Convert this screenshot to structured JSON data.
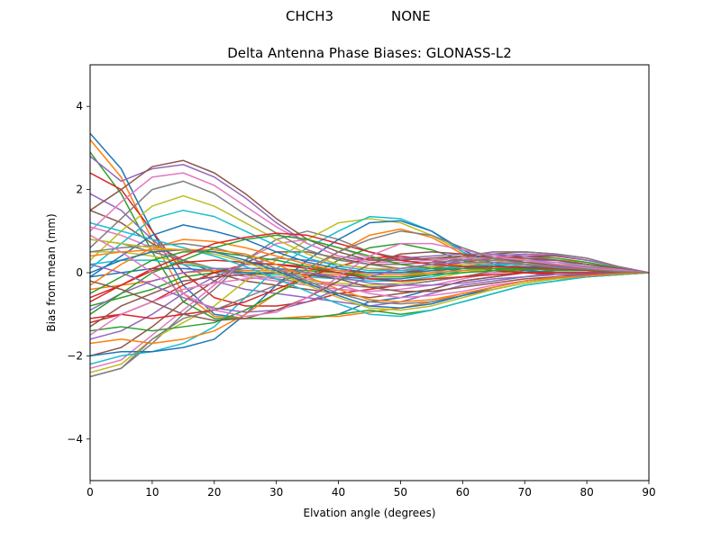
{
  "figure": {
    "suptitle_station": "CHCH3",
    "suptitle_radome": "NONE"
  },
  "chart_data": {
    "type": "line",
    "title": "Delta Antenna Phase Biases: GLONASS-L2",
    "xlabel": "Elvation angle (degrees)",
    "ylabel": "Bias from mean (mm)",
    "xlim": [
      0,
      90
    ],
    "ylim": [
      -5,
      5
    ],
    "xticks": [
      0,
      10,
      20,
      30,
      40,
      50,
      60,
      70,
      80,
      90
    ],
    "yticks": [
      -4,
      -2,
      0,
      2,
      4
    ],
    "ytick_labels": [
      "−4",
      "−2",
      "0",
      "2",
      "4"
    ],
    "grid": false,
    "legend": "none",
    "colors": [
      "#1f77b4",
      "#ff7f0e",
      "#2ca02c",
      "#d62728",
      "#9467bd",
      "#8c564b",
      "#e377c2",
      "#7f7f7f",
      "#bcbd22",
      "#17becf"
    ],
    "x": [
      0,
      5,
      10,
      15,
      20,
      25,
      30,
      35,
      40,
      45,
      50,
      55,
      60,
      65,
      70,
      75,
      80,
      85,
      90
    ],
    "series": [
      {
        "values": [
          3.35,
          2.5,
          1.0,
          -0.3,
          -1.0,
          -1.1,
          -1.1,
          -1.1,
          -1.0,
          -0.7,
          -0.6,
          -0.4,
          -0.2,
          -0.1,
          0.0,
          0.05,
          0.05,
          0.03,
          0.0
        ]
      },
      {
        "values": [
          3.2,
          2.3,
          0.8,
          -0.5,
          -1.05,
          -1.1,
          -1.1,
          -1.05,
          -1.05,
          -0.95,
          -0.85,
          -0.7,
          -0.5,
          -0.35,
          -0.2,
          -0.1,
          -0.05,
          -0.02,
          0.0
        ]
      },
      {
        "values": [
          2.9,
          1.9,
          0.5,
          -0.7,
          -1.1,
          -1.1,
          -1.1,
          -1.1,
          -1.0,
          -0.9,
          -1.0,
          -0.9,
          -0.7,
          -0.5,
          -0.3,
          -0.2,
          -0.1,
          -0.05,
          0.0
        ]
      },
      {
        "values": [
          2.4,
          2.0,
          1.0,
          0.0,
          -0.6,
          -0.8,
          -0.8,
          -0.7,
          -0.5,
          -0.4,
          -0.3,
          -0.2,
          -0.1,
          0.0,
          0.05,
          0.1,
          0.1,
          0.05,
          0.0
        ]
      },
      {
        "values": [
          1.9,
          1.5,
          0.8,
          0.2,
          -0.2,
          -0.4,
          -0.5,
          -0.6,
          -0.7,
          -0.8,
          -0.7,
          -0.5,
          -0.3,
          -0.2,
          -0.1,
          0.0,
          0.0,
          0.0,
          0.0
        ]
      },
      {
        "values": [
          1.5,
          1.2,
          0.7,
          0.3,
          0.0,
          -0.2,
          -0.3,
          -0.4,
          -0.5,
          -0.6,
          -0.5,
          -0.4,
          -0.2,
          -0.1,
          0.0,
          0.05,
          0.05,
          0.02,
          0.0
        ]
      },
      {
        "values": [
          1.1,
          0.9,
          0.6,
          0.3,
          0.1,
          -0.1,
          -0.2,
          -0.3,
          -0.4,
          -0.45,
          -0.4,
          -0.3,
          -0.15,
          0.0,
          0.1,
          0.1,
          0.08,
          0.03,
          0.0
        ]
      },
      {
        "values": [
          0.8,
          0.7,
          0.5,
          0.3,
          0.1,
          -0.05,
          -0.15,
          -0.25,
          -0.3,
          -0.35,
          -0.3,
          -0.2,
          -0.1,
          0.05,
          0.15,
          0.15,
          0.1,
          0.05,
          0.0
        ]
      },
      {
        "values": [
          0.5,
          0.5,
          0.4,
          0.25,
          0.1,
          0.0,
          -0.1,
          -0.2,
          -0.25,
          -0.3,
          -0.25,
          -0.15,
          0.0,
          0.1,
          0.2,
          0.2,
          0.15,
          0.05,
          0.0
        ]
      },
      {
        "values": [
          0.2,
          0.3,
          0.3,
          0.2,
          0.1,
          0.0,
          -0.05,
          -0.1,
          -0.15,
          -0.2,
          -0.2,
          -0.1,
          0.05,
          0.15,
          0.25,
          0.25,
          0.2,
          0.08,
          0.0
        ]
      },
      {
        "values": [
          -0.1,
          0.0,
          0.1,
          0.1,
          0.05,
          0.0,
          0.0,
          -0.05,
          -0.1,
          -0.15,
          -0.15,
          -0.05,
          0.1,
          0.2,
          0.3,
          0.3,
          0.2,
          0.1,
          0.0
        ]
      },
      {
        "values": [
          -0.4,
          -0.3,
          -0.2,
          0.0,
          0.05,
          0.05,
          0.05,
          0.0,
          -0.05,
          -0.1,
          -0.1,
          0.0,
          0.15,
          0.25,
          0.35,
          0.3,
          0.25,
          0.1,
          0.0
        ]
      },
      {
        "values": [
          -0.8,
          -0.6,
          -0.4,
          -0.1,
          0.0,
          0.1,
          0.1,
          0.05,
          0.0,
          -0.05,
          -0.05,
          0.05,
          0.2,
          0.3,
          0.4,
          0.35,
          0.25,
          0.12,
          0.0
        ]
      },
      {
        "values": [
          -1.2,
          -1.0,
          -0.7,
          -0.3,
          0.0,
          0.2,
          0.2,
          0.15,
          0.05,
          0.0,
          0.0,
          0.1,
          0.25,
          0.35,
          0.4,
          0.4,
          0.3,
          0.15,
          0.0
        ]
      },
      {
        "values": [
          -1.6,
          -1.4,
          -1.0,
          -0.5,
          -0.1,
          0.2,
          0.35,
          0.3,
          0.2,
          0.1,
          0.05,
          0.15,
          0.3,
          0.4,
          0.45,
          0.42,
          0.3,
          0.15,
          0.0
        ]
      },
      {
        "values": [
          -2.0,
          -1.8,
          -1.3,
          -0.7,
          -0.2,
          0.25,
          0.5,
          0.5,
          0.35,
          0.2,
          0.1,
          0.2,
          0.35,
          0.45,
          0.5,
          0.45,
          0.35,
          0.15,
          0.0
        ]
      },
      {
        "values": [
          -2.3,
          -2.1,
          -1.5,
          -0.9,
          -0.3,
          0.3,
          0.7,
          0.8,
          0.6,
          0.35,
          0.2,
          0.25,
          0.4,
          0.5,
          0.5,
          0.45,
          0.35,
          0.15,
          0.0
        ]
      },
      {
        "values": [
          -2.5,
          -2.3,
          -1.7,
          -1.0,
          -0.4,
          0.3,
          0.8,
          1.0,
          0.8,
          0.5,
          0.35,
          0.3,
          0.4,
          0.5,
          0.5,
          0.45,
          0.35,
          0.15,
          0.0
        ]
      },
      {
        "values": [
          -2.4,
          -2.2,
          -1.6,
          -1.2,
          -0.8,
          -0.2,
          0.3,
          0.8,
          1.2,
          1.3,
          1.2,
          0.9,
          0.5,
          0.2,
          0.05,
          0.0,
          0.0,
          0.0,
          0.0
        ]
      },
      {
        "values": [
          -2.2,
          -2.0,
          -1.9,
          -1.7,
          -1.3,
          -0.6,
          0.1,
          0.6,
          1.0,
          1.35,
          1.3,
          1.0,
          0.5,
          0.15,
          0.0,
          -0.05,
          -0.05,
          -0.02,
          0.0
        ]
      },
      {
        "values": [
          -2.0,
          -1.9,
          -1.9,
          -1.8,
          -1.6,
          -1.0,
          -0.3,
          0.3,
          0.8,
          1.2,
          1.25,
          1.0,
          0.55,
          0.2,
          0.05,
          0.0,
          0.0,
          0.0,
          0.0
        ]
      },
      {
        "values": [
          -1.7,
          -1.6,
          -1.7,
          -1.6,
          -1.4,
          -1.0,
          -0.5,
          0.0,
          0.5,
          0.9,
          1.05,
          0.85,
          0.45,
          0.15,
          0.0,
          -0.05,
          -0.05,
          -0.02,
          0.0
        ]
      },
      {
        "values": [
          -1.4,
          -1.3,
          -1.4,
          -1.3,
          -1.2,
          -0.9,
          -0.5,
          -0.1,
          0.3,
          0.6,
          0.7,
          0.55,
          0.3,
          0.1,
          0.0,
          -0.05,
          -0.05,
          -0.02,
          0.0
        ]
      },
      {
        "values": [
          -1.1,
          -1.0,
          -1.1,
          -1.0,
          -0.9,
          -0.7,
          -0.4,
          -0.1,
          0.15,
          0.35,
          0.4,
          0.3,
          0.15,
          0.05,
          0.0,
          -0.05,
          -0.05,
          -0.02,
          0.0
        ]
      },
      {
        "values": [
          2.8,
          2.2,
          2.5,
          2.6,
          2.3,
          1.8,
          1.2,
          0.7,
          0.4,
          0.3,
          0.35,
          0.4,
          0.45,
          0.45,
          0.4,
          0.3,
          0.2,
          0.1,
          0.0
        ]
      },
      {
        "values": [
          1.5,
          2.0,
          2.55,
          2.7,
          2.4,
          1.9,
          1.3,
          0.8,
          0.5,
          0.3,
          0.3,
          0.35,
          0.4,
          0.4,
          0.35,
          0.3,
          0.2,
          0.1,
          0.0
        ]
      },
      {
        "values": [
          1.0,
          1.7,
          2.3,
          2.4,
          2.1,
          1.6,
          1.1,
          0.7,
          0.4,
          0.25,
          0.25,
          0.3,
          0.35,
          0.35,
          0.3,
          0.25,
          0.15,
          0.08,
          0.0
        ]
      },
      {
        "values": [
          0.6,
          1.3,
          2.0,
          2.2,
          1.9,
          1.4,
          0.95,
          0.55,
          0.3,
          0.2,
          0.2,
          0.25,
          0.3,
          0.3,
          0.3,
          0.2,
          0.15,
          0.05,
          0.0
        ]
      },
      {
        "values": [
          0.3,
          1.0,
          1.6,
          1.85,
          1.6,
          1.2,
          0.8,
          0.45,
          0.2,
          0.1,
          0.1,
          0.15,
          0.2,
          0.25,
          0.25,
          0.2,
          0.12,
          0.05,
          0.0
        ]
      },
      {
        "values": [
          0.1,
          0.7,
          1.3,
          1.5,
          1.35,
          1.0,
          0.65,
          0.35,
          0.15,
          0.05,
          0.05,
          0.1,
          0.15,
          0.2,
          0.2,
          0.15,
          0.1,
          0.05,
          0.0
        ]
      },
      {
        "values": [
          -0.1,
          0.4,
          0.9,
          1.15,
          1.0,
          0.8,
          0.5,
          0.25,
          0.1,
          0.0,
          0.0,
          0.05,
          0.1,
          0.15,
          0.15,
          0.12,
          0.08,
          0.04,
          0.0
        ]
      },
      {
        "values": [
          -0.3,
          0.2,
          0.6,
          0.8,
          0.75,
          0.6,
          0.4,
          0.2,
          0.05,
          -0.05,
          -0.05,
          0.0,
          0.05,
          0.1,
          0.12,
          0.1,
          0.06,
          0.03,
          0.0
        ]
      },
      {
        "values": [
          -0.5,
          -0.1,
          0.3,
          0.5,
          0.5,
          0.4,
          0.3,
          0.15,
          0.0,
          -0.1,
          -0.1,
          -0.05,
          0.0,
          0.05,
          0.08,
          0.06,
          0.05,
          0.02,
          0.0
        ]
      },
      {
        "values": [
          -0.7,
          -0.3,
          0.05,
          0.25,
          0.3,
          0.25,
          0.2,
          0.1,
          0.0,
          -0.15,
          -0.2,
          -0.15,
          -0.1,
          -0.05,
          0.0,
          0.0,
          0.0,
          0.0,
          0.0
        ]
      },
      {
        "values": [
          -0.9,
          -0.5,
          -0.2,
          0.0,
          0.1,
          0.1,
          0.1,
          0.0,
          -0.1,
          -0.25,
          -0.3,
          -0.3,
          -0.25,
          -0.15,
          -0.1,
          -0.05,
          -0.03,
          -0.01,
          0.0
        ]
      },
      {
        "values": [
          -1.3,
          -0.8,
          -0.5,
          -0.2,
          -0.1,
          -0.05,
          0.0,
          -0.05,
          -0.15,
          -0.35,
          -0.45,
          -0.45,
          -0.35,
          -0.25,
          -0.15,
          -0.1,
          -0.05,
          -0.02,
          0.0
        ]
      },
      {
        "values": [
          -1.5,
          -1.0,
          -0.7,
          -0.4,
          -0.25,
          -0.15,
          -0.1,
          -0.15,
          -0.3,
          -0.5,
          -0.6,
          -0.55,
          -0.45,
          -0.3,
          -0.2,
          -0.12,
          -0.07,
          -0.03,
          0.0
        ]
      },
      {
        "values": [
          0.5,
          0.6,
          0.65,
          0.7,
          0.6,
          0.4,
          0.1,
          -0.2,
          -0.5,
          -0.7,
          -0.75,
          -0.7,
          -0.55,
          -0.4,
          -0.25,
          -0.15,
          -0.1,
          -0.05,
          0.0
        ]
      },
      {
        "values": [
          0.8,
          0.7,
          0.6,
          0.55,
          0.45,
          0.25,
          0.0,
          -0.3,
          -0.6,
          -0.85,
          -0.9,
          -0.8,
          -0.6,
          -0.4,
          -0.25,
          -0.15,
          -0.1,
          -0.05,
          0.0
        ]
      },
      {
        "values": [
          1.2,
          1.0,
          0.8,
          0.6,
          0.4,
          0.15,
          -0.15,
          -0.45,
          -0.75,
          -1.0,
          -1.05,
          -0.9,
          -0.7,
          -0.5,
          -0.3,
          -0.2,
          -0.1,
          -0.05,
          0.0
        ]
      },
      {
        "values": [
          0.0,
          0.3,
          0.5,
          0.55,
          0.5,
          0.3,
          0.05,
          -0.25,
          -0.55,
          -0.8,
          -0.85,
          -0.75,
          -0.55,
          -0.35,
          -0.2,
          -0.12,
          -0.08,
          -0.03,
          0.0
        ]
      },
      {
        "values": [
          0.4,
          0.5,
          0.55,
          0.55,
          0.55,
          0.45,
          0.2,
          -0.1,
          -0.4,
          -0.65,
          -0.7,
          -0.65,
          -0.5,
          -0.35,
          -0.2,
          -0.12,
          -0.08,
          -0.03,
          0.0
        ]
      },
      {
        "values": [
          -1.0,
          -0.5,
          0.0,
          0.3,
          0.6,
          0.8,
          0.9,
          0.8,
          0.6,
          0.4,
          0.2,
          0.1,
          0.1,
          0.1,
          0.1,
          0.08,
          0.05,
          0.02,
          0.0
        ]
      },
      {
        "values": [
          -0.6,
          -0.3,
          0.1,
          0.4,
          0.7,
          0.85,
          0.95,
          0.9,
          0.7,
          0.5,
          0.3,
          0.2,
          0.15,
          0.15,
          0.12,
          0.1,
          0.06,
          0.03,
          0.0
        ]
      },
      {
        "values": [
          0.2,
          0.0,
          -0.3,
          -0.6,
          -0.85,
          -0.95,
          -0.9,
          -0.7,
          -0.4,
          -0.1,
          0.1,
          0.2,
          0.25,
          0.25,
          0.2,
          0.15,
          0.1,
          0.05,
          0.0
        ]
      },
      {
        "values": [
          -0.2,
          -0.4,
          -0.7,
          -1.0,
          -1.15,
          -1.1,
          -0.9,
          -0.6,
          -0.2,
          0.2,
          0.45,
          0.5,
          0.45,
          0.35,
          0.25,
          0.18,
          0.12,
          0.05,
          0.0
        ]
      },
      {
        "values": [
          0.9,
          0.5,
          0.0,
          -0.5,
          -0.9,
          -1.05,
          -0.95,
          -0.6,
          -0.1,
          0.4,
          0.7,
          0.7,
          0.55,
          0.4,
          0.3,
          0.2,
          0.12,
          0.05,
          0.0
        ]
      },
      {
        "values": [
          -2.5,
          -2.3,
          -1.6,
          -1.1,
          -0.9,
          -0.6,
          -0.3,
          0.1,
          0.5,
          0.8,
          1.0,
          0.9,
          0.6,
          0.35,
          0.2,
          0.12,
          0.08,
          0.03,
          0.0
        ]
      }
    ]
  }
}
